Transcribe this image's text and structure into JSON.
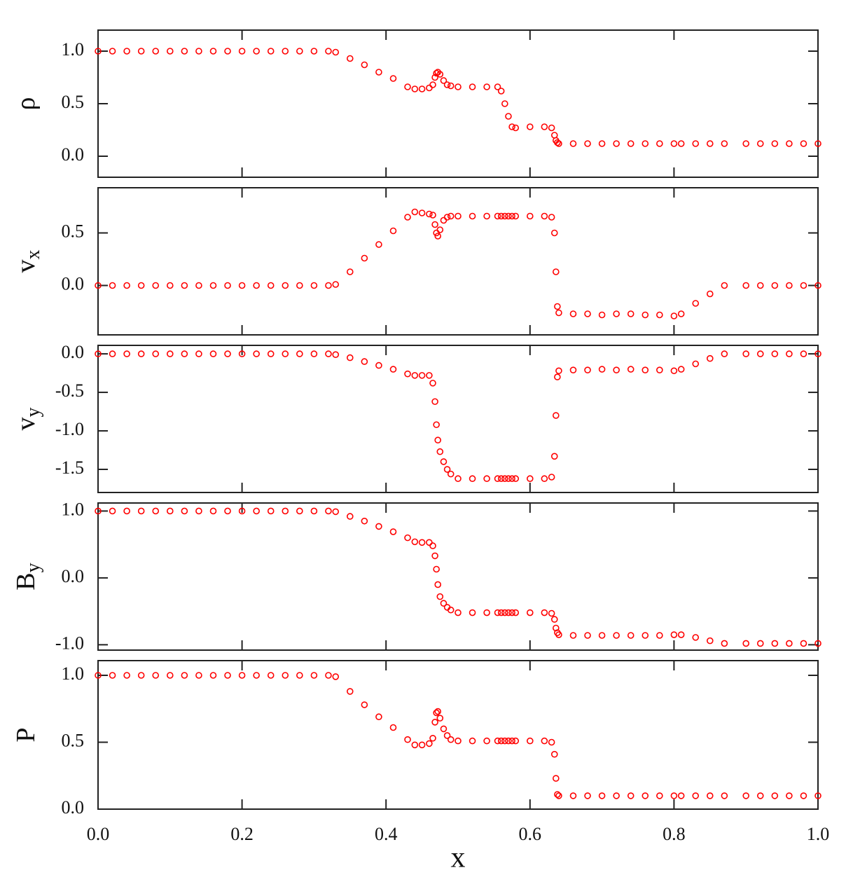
{
  "chart_data": [
    {
      "type": "scatter",
      "ylabel": "ρ",
      "color": "#ff0000",
      "xlim": [
        0,
        1
      ],
      "ylim": [
        -0.2,
        1.2
      ],
      "xticks": [
        0,
        0.2,
        0.4,
        0.6,
        0.8,
        1
      ],
      "yticks": [
        {
          "value": 1,
          "label": "1.0"
        },
        0.5,
        {
          "value": 0,
          "label": "0.0"
        }
      ],
      "x": [
        0,
        0.02,
        0.04,
        0.06,
        0.08,
        0.1,
        0.12,
        0.14,
        0.16,
        0.18,
        0.2,
        0.22,
        0.24,
        0.26,
        0.28,
        0.3,
        0.32,
        0.33,
        0.35,
        0.37,
        0.39,
        0.41,
        0.43,
        0.44,
        0.45,
        0.46,
        0.465,
        0.468,
        0.47,
        0.472,
        0.475,
        0.48,
        0.485,
        0.49,
        0.5,
        0.52,
        0.54,
        0.555,
        0.56,
        0.565,
        0.57,
        0.575,
        0.58,
        0.6,
        0.62,
        0.63,
        0.634,
        0.636,
        0.638,
        0.64,
        0.66,
        0.68,
        0.7,
        0.72,
        0.74,
        0.76,
        0.78,
        0.8,
        0.81,
        0.83,
        0.85,
        0.87,
        0.9,
        0.92,
        0.94,
        0.96,
        0.98,
        1.0
      ],
      "values": [
        1,
        1,
        1,
        1,
        1,
        1,
        1,
        1,
        1,
        1,
        1,
        1,
        1,
        1,
        1,
        1,
        1,
        0.99,
        0.93,
        0.87,
        0.8,
        0.74,
        0.66,
        0.64,
        0.64,
        0.65,
        0.68,
        0.75,
        0.79,
        0.8,
        0.78,
        0.72,
        0.68,
        0.67,
        0.66,
        0.66,
        0.66,
        0.66,
        0.62,
        0.5,
        0.38,
        0.28,
        0.27,
        0.28,
        0.28,
        0.27,
        0.2,
        0.15,
        0.13,
        0.12,
        0.12,
        0.12,
        0.12,
        0.12,
        0.12,
        0.12,
        0.12,
        0.12,
        0.12,
        0.12,
        0.12,
        0.12,
        0.12,
        0.12,
        0.12,
        0.12,
        0.12,
        0.12
      ]
    },
    {
      "type": "scatter",
      "ylabel": "v",
      "ylabel_sub": "x",
      "color": "#ff0000",
      "xlim": [
        0,
        1
      ],
      "ylim": [
        -0.47,
        0.93
      ],
      "xticks": [
        0,
        0.2,
        0.4,
        0.6,
        0.8,
        1
      ],
      "yticks": [
        0.5,
        {
          "value": 0,
          "label": "0.0"
        }
      ],
      "x": [
        0,
        0.02,
        0.04,
        0.06,
        0.08,
        0.1,
        0.12,
        0.14,
        0.16,
        0.18,
        0.2,
        0.22,
        0.24,
        0.26,
        0.28,
        0.3,
        0.32,
        0.33,
        0.35,
        0.37,
        0.39,
        0.41,
        0.43,
        0.44,
        0.45,
        0.46,
        0.465,
        0.468,
        0.47,
        0.472,
        0.475,
        0.48,
        0.485,
        0.49,
        0.5,
        0.52,
        0.54,
        0.555,
        0.56,
        0.565,
        0.57,
        0.575,
        0.58,
        0.6,
        0.62,
        0.63,
        0.634,
        0.636,
        0.638,
        0.64,
        0.66,
        0.68,
        0.7,
        0.72,
        0.74,
        0.76,
        0.78,
        0.8,
        0.81,
        0.83,
        0.85,
        0.87,
        0.9,
        0.92,
        0.94,
        0.96,
        0.98,
        1.0
      ],
      "values": [
        0,
        0,
        0,
        0,
        0,
        0,
        0,
        0,
        0,
        0,
        0,
        0,
        0,
        0,
        0,
        0,
        0,
        0.01,
        0.13,
        0.26,
        0.39,
        0.52,
        0.65,
        0.7,
        0.69,
        0.68,
        0.67,
        0.58,
        0.5,
        0.47,
        0.53,
        0.62,
        0.65,
        0.66,
        0.66,
        0.66,
        0.66,
        0.66,
        0.66,
        0.66,
        0.66,
        0.66,
        0.66,
        0.66,
        0.66,
        0.65,
        0.5,
        0.13,
        -0.2,
        -0.26,
        -0.27,
        -0.27,
        -0.28,
        -0.27,
        -0.27,
        -0.28,
        -0.28,
        -0.29,
        -0.27,
        -0.17,
        -0.08,
        0,
        0,
        0,
        0,
        0,
        0,
        0
      ]
    },
    {
      "type": "scatter",
      "ylabel": "v",
      "ylabel_sub": "y",
      "color": "#ff0000",
      "xlim": [
        0,
        1
      ],
      "ylim": [
        -1.8,
        0.11
      ],
      "xticks": [
        0,
        0.2,
        0.4,
        0.6,
        0.8,
        1
      ],
      "yticks": [
        {
          "value": 0,
          "label": "0.0"
        },
        -0.5,
        {
          "value": -1,
          "label": "-1.0"
        },
        -1.5
      ],
      "x": [
        0,
        0.02,
        0.04,
        0.06,
        0.08,
        0.1,
        0.12,
        0.14,
        0.16,
        0.18,
        0.2,
        0.22,
        0.24,
        0.26,
        0.28,
        0.3,
        0.32,
        0.33,
        0.35,
        0.37,
        0.39,
        0.41,
        0.43,
        0.44,
        0.45,
        0.46,
        0.465,
        0.468,
        0.47,
        0.472,
        0.475,
        0.48,
        0.485,
        0.49,
        0.5,
        0.52,
        0.54,
        0.555,
        0.56,
        0.565,
        0.57,
        0.575,
        0.58,
        0.6,
        0.62,
        0.63,
        0.634,
        0.636,
        0.638,
        0.64,
        0.66,
        0.68,
        0.7,
        0.72,
        0.74,
        0.76,
        0.78,
        0.8,
        0.81,
        0.83,
        0.85,
        0.87,
        0.9,
        0.92,
        0.94,
        0.96,
        0.98,
        1.0
      ],
      "values": [
        0,
        0,
        0,
        0,
        0,
        0,
        0,
        0,
        0,
        0,
        0,
        0,
        0,
        0,
        0,
        0,
        0,
        -0.01,
        -0.05,
        -0.1,
        -0.15,
        -0.2,
        -0.26,
        -0.28,
        -0.28,
        -0.28,
        -0.38,
        -0.62,
        -0.92,
        -1.12,
        -1.27,
        -1.4,
        -1.5,
        -1.56,
        -1.62,
        -1.62,
        -1.62,
        -1.62,
        -1.62,
        -1.62,
        -1.62,
        -1.62,
        -1.62,
        -1.62,
        -1.62,
        -1.6,
        -1.33,
        -0.8,
        -0.3,
        -0.22,
        -0.21,
        -0.21,
        -0.2,
        -0.21,
        -0.2,
        -0.21,
        -0.21,
        -0.22,
        -0.2,
        -0.13,
        -0.06,
        0,
        0,
        0,
        0,
        0,
        0,
        0
      ]
    },
    {
      "type": "scatter",
      "ylabel": "B",
      "ylabel_sub": "y",
      "color": "#ff0000",
      "xlim": [
        0,
        1
      ],
      "ylim": [
        -1.08,
        1.12
      ],
      "xticks": [
        0,
        0.2,
        0.4,
        0.6,
        0.8,
        1
      ],
      "yticks": [
        {
          "value": 1,
          "label": "1.0"
        },
        {
          "value": 0,
          "label": "0.0"
        },
        {
          "value": -1,
          "label": "-1.0"
        }
      ],
      "x": [
        0,
        0.02,
        0.04,
        0.06,
        0.08,
        0.1,
        0.12,
        0.14,
        0.16,
        0.18,
        0.2,
        0.22,
        0.24,
        0.26,
        0.28,
        0.3,
        0.32,
        0.33,
        0.35,
        0.37,
        0.39,
        0.41,
        0.43,
        0.44,
        0.45,
        0.46,
        0.465,
        0.468,
        0.47,
        0.472,
        0.475,
        0.48,
        0.485,
        0.49,
        0.5,
        0.52,
        0.54,
        0.555,
        0.56,
        0.565,
        0.57,
        0.575,
        0.58,
        0.6,
        0.62,
        0.63,
        0.634,
        0.636,
        0.638,
        0.64,
        0.66,
        0.68,
        0.7,
        0.72,
        0.74,
        0.76,
        0.78,
        0.8,
        0.81,
        0.83,
        0.85,
        0.87,
        0.9,
        0.92,
        0.94,
        0.96,
        0.98,
        1.0
      ],
      "values": [
        1,
        1,
        1,
        1,
        1,
        1,
        1,
        1,
        1,
        1,
        1,
        1,
        1,
        1,
        1,
        1,
        1,
        0.99,
        0.92,
        0.85,
        0.77,
        0.69,
        0.6,
        0.54,
        0.53,
        0.53,
        0.48,
        0.33,
        0.13,
        -0.1,
        -0.28,
        -0.38,
        -0.44,
        -0.48,
        -0.52,
        -0.52,
        -0.52,
        -0.52,
        -0.52,
        -0.52,
        -0.52,
        -0.52,
        -0.52,
        -0.52,
        -0.52,
        -0.53,
        -0.62,
        -0.75,
        -0.82,
        -0.85,
        -0.86,
        -0.86,
        -0.86,
        -0.86,
        -0.86,
        -0.86,
        -0.86,
        -0.85,
        -0.85,
        -0.89,
        -0.94,
        -0.98,
        -0.98,
        -0.98,
        -0.98,
        -0.98,
        -0.98,
        -0.98
      ]
    },
    {
      "type": "scatter",
      "ylabel": "P",
      "xlabel": "x",
      "color": "#ff0000",
      "xlim": [
        0,
        1
      ],
      "ylim": [
        0,
        1.11
      ],
      "xticks": [
        {
          "value": 0,
          "label": "0.0"
        },
        0.2,
        0.4,
        0.6,
        0.8,
        {
          "value": 1,
          "label": "1.0"
        }
      ],
      "yticks": [
        {
          "value": 1,
          "label": "1.0"
        },
        0.5,
        {
          "value": 0,
          "label": "0.0"
        }
      ],
      "x": [
        0,
        0.02,
        0.04,
        0.06,
        0.08,
        0.1,
        0.12,
        0.14,
        0.16,
        0.18,
        0.2,
        0.22,
        0.24,
        0.26,
        0.28,
        0.3,
        0.32,
        0.33,
        0.35,
        0.37,
        0.39,
        0.41,
        0.43,
        0.44,
        0.45,
        0.46,
        0.465,
        0.468,
        0.47,
        0.472,
        0.475,
        0.48,
        0.485,
        0.49,
        0.5,
        0.52,
        0.54,
        0.555,
        0.56,
        0.565,
        0.57,
        0.575,
        0.58,
        0.6,
        0.62,
        0.63,
        0.634,
        0.636,
        0.638,
        0.64,
        0.66,
        0.68,
        0.7,
        0.72,
        0.74,
        0.76,
        0.78,
        0.8,
        0.81,
        0.83,
        0.85,
        0.87,
        0.9,
        0.92,
        0.94,
        0.96,
        0.98,
        1.0
      ],
      "values": [
        1,
        1,
        1,
        1,
        1,
        1,
        1,
        1,
        1,
        1,
        1,
        1,
        1,
        1,
        1,
        1,
        1,
        0.99,
        0.88,
        0.78,
        0.69,
        0.61,
        0.52,
        0.48,
        0.48,
        0.49,
        0.53,
        0.65,
        0.72,
        0.73,
        0.68,
        0.6,
        0.55,
        0.52,
        0.51,
        0.51,
        0.51,
        0.51,
        0.51,
        0.51,
        0.51,
        0.51,
        0.51,
        0.51,
        0.51,
        0.5,
        0.41,
        0.23,
        0.11,
        0.1,
        0.1,
        0.1,
        0.1,
        0.1,
        0.1,
        0.1,
        0.1,
        0.1,
        0.1,
        0.1,
        0.1,
        0.1,
        0.1,
        0.1,
        0.1,
        0.1,
        0.1,
        0.1
      ]
    }
  ]
}
